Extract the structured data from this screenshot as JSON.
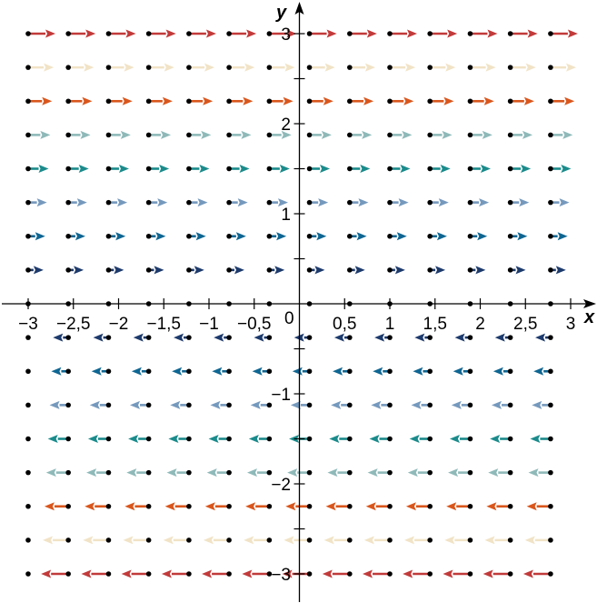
{
  "chart_data": {
    "type": "vector-field",
    "xlabel": "x",
    "ylabel": "y",
    "xlim": [
      -3,
      3
    ],
    "ylim": [
      -3,
      3
    ],
    "x_ticks": [
      -3,
      -2.5,
      -2,
      -1.5,
      -1,
      -0.5,
      0,
      0.5,
      1,
      1.5,
      2,
      2.5,
      3
    ],
    "x_tick_labels": [
      "−3",
      "−2,5",
      "−2",
      "−1,5",
      "−1",
      "−0,5",
      "0",
      "0,5",
      "1",
      "1,5",
      "2",
      "2,5",
      "3"
    ],
    "y_ticks": [
      -3,
      -2.5,
      -2,
      -1.5,
      -1,
      -0.5,
      0.5,
      1,
      1.5,
      2,
      2.5,
      3
    ],
    "y_tick_labels": [
      {
        "value": 3,
        "label": "3"
      },
      {
        "value": 2,
        "label": "2"
      },
      {
        "value": 1,
        "label": "1"
      },
      {
        "value": -1,
        "label": "−1"
      },
      {
        "value": -2,
        "label": "−2"
      },
      {
        "value": -3,
        "label": "−3"
      }
    ],
    "origin_label": "0",
    "grid": false,
    "sample_x": [
      -3,
      -2.556,
      -2.111,
      -1.667,
      -1.222,
      -0.778,
      -0.333,
      0.111,
      0.556,
      1,
      1.444,
      1.889,
      2.333,
      2.778
    ],
    "rows": [
      {
        "y": 3,
        "direction": "right",
        "color": "#c23a3a"
      },
      {
        "y": 2.625,
        "direction": "right",
        "color": "#f1e3c6"
      },
      {
        "y": 2.25,
        "direction": "right",
        "color": "#d9561c"
      },
      {
        "y": 1.875,
        "direction": "right",
        "color": "#8fb9b9"
      },
      {
        "y": 1.5,
        "direction": "right",
        "color": "#1b8b8b"
      },
      {
        "y": 1.125,
        "direction": "right",
        "color": "#7599bd"
      },
      {
        "y": 0.75,
        "direction": "right",
        "color": "#0f6692"
      },
      {
        "y": 0.375,
        "direction": "right",
        "color": "#1d3a6c"
      },
      {
        "y": 0,
        "direction": "none",
        "color": "#000000"
      },
      {
        "y": -0.375,
        "direction": "left",
        "color": "#1d3a6c"
      },
      {
        "y": -0.75,
        "direction": "left",
        "color": "#0f6692"
      },
      {
        "y": -1.125,
        "direction": "left",
        "color": "#7599bd"
      },
      {
        "y": -1.5,
        "direction": "left",
        "color": "#1b8b8b"
      },
      {
        "y": -1.875,
        "direction": "left",
        "color": "#8fb9b9"
      },
      {
        "y": -2.25,
        "direction": "left",
        "color": "#d9561c"
      },
      {
        "y": -2.625,
        "direction": "left",
        "color": "#f1e3c6"
      },
      {
        "y": -3,
        "direction": "left",
        "color": "#c23a3a"
      }
    ]
  }
}
